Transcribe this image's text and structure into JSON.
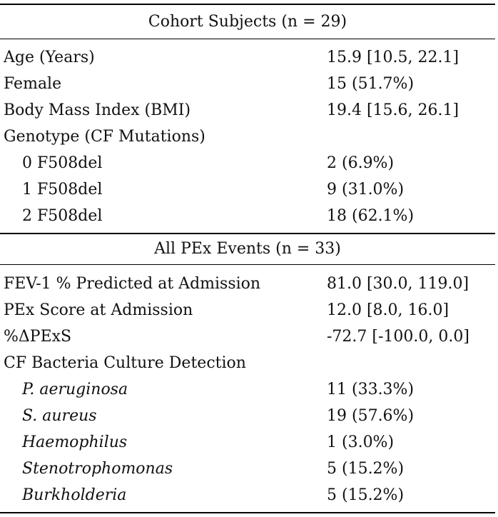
{
  "sections": [
    {
      "title": "Cohort Subjects (n = 29)",
      "rows": [
        {
          "label": "Age (Years)",
          "value": "15.9 [10.5, 22.1]",
          "indent": false,
          "italic": false
        },
        {
          "label": "Female",
          "value": "15 (51.7%)",
          "indent": false,
          "italic": false
        },
        {
          "label": "Body Mass Index (BMI)",
          "value": "19.4 [15.6, 26.1]",
          "indent": false,
          "italic": false
        },
        {
          "label": "Genotype (CF Mutations)",
          "value": "",
          "indent": false,
          "italic": false
        },
        {
          "label": "0 F508del",
          "value": "2 (6.9%)",
          "indent": true,
          "italic": false
        },
        {
          "label": "1 F508del",
          "value": "9 (31.0%)",
          "indent": true,
          "italic": false
        },
        {
          "label": "2 F508del",
          "value": "18 (62.1%)",
          "indent": true,
          "italic": false
        }
      ]
    },
    {
      "title": "All PEx Events (n = 33)",
      "rows": [
        {
          "label": "FEV-1 % Predicted at Admission",
          "value": "81.0 [30.0, 119.0]",
          "indent": false,
          "italic": false
        },
        {
          "label": "PEx Score at Admission",
          "value": "12.0 [8.0, 16.0]",
          "indent": false,
          "italic": false
        },
        {
          "label": "%ΔPExS",
          "value": "-72.7 [-100.0, 0.0]",
          "indent": false,
          "italic": false
        },
        {
          "label": "CF Bacteria Culture Detection",
          "value": "",
          "indent": false,
          "italic": false
        },
        {
          "label": "P. aeruginosa",
          "value": "11 (33.3%)",
          "indent": true,
          "italic": true
        },
        {
          "label": "S. aureus",
          "value": "19 (57.6%)",
          "indent": true,
          "italic": true
        },
        {
          "label": "Haemophilus",
          "value": "1 (3.0%)",
          "indent": true,
          "italic": true
        },
        {
          "label": "Stenotrophomonas",
          "value": "5 (15.2%)",
          "indent": true,
          "italic": true
        },
        {
          "label": "Burkholderia",
          "value": "5 (15.2%)",
          "indent": true,
          "italic": true
        }
      ]
    }
  ]
}
